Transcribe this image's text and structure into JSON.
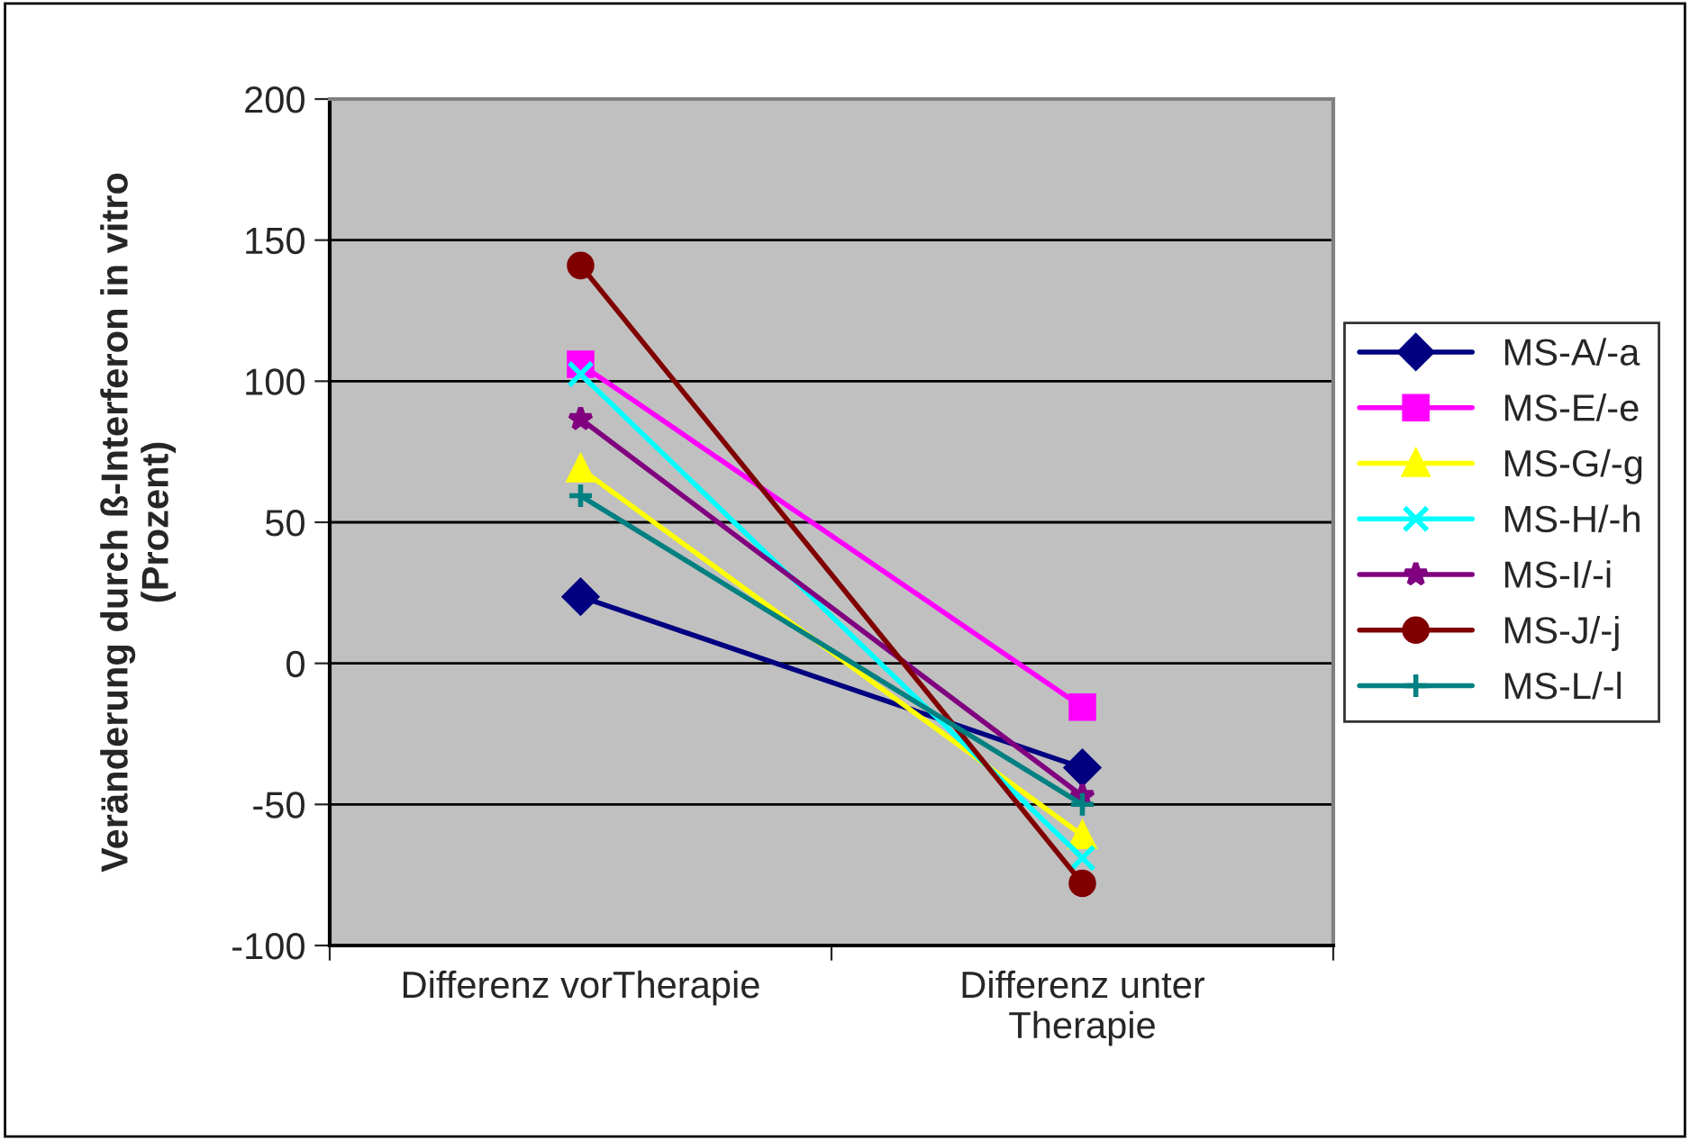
{
  "chart_data": {
    "type": "line",
    "ylabel": "Veränderung durch ß-Interferon in vitro\n(Prozent)",
    "categories": [
      "Differenz vorTherapie",
      "Differenz unter\nTherapie"
    ],
    "ylim": [
      -100,
      200
    ],
    "yticks": [
      -100,
      -50,
      0,
      50,
      100,
      150,
      200
    ],
    "grid": "y",
    "legend": "right",
    "series": [
      {
        "name": "MS-A/-a",
        "color": "#000080",
        "marker": "diamond",
        "values": [
          23.6,
          -37
        ]
      },
      {
        "name": "MS-E/-e",
        "color": "#ff00ff",
        "marker": "square",
        "values": [
          106,
          -15.5
        ]
      },
      {
        "name": "MS-G/-g",
        "color": "#ffff00",
        "marker": "triangle",
        "values": [
          69,
          -61
        ]
      },
      {
        "name": "MS-H/-h",
        "color": "#00ffff",
        "marker": "cross",
        "values": [
          102.5,
          -69
        ]
      },
      {
        "name": "MS-I/-i",
        "color": "#800080",
        "marker": "star",
        "values": [
          86.6,
          -47
        ]
      },
      {
        "name": "MS-J/-j",
        "color": "#800000",
        "marker": "circle",
        "values": [
          141,
          -78
        ]
      },
      {
        "name": "MS-L/-l",
        "color": "#008080",
        "marker": "plus",
        "values": [
          59.4,
          -50
        ]
      }
    ]
  }
}
